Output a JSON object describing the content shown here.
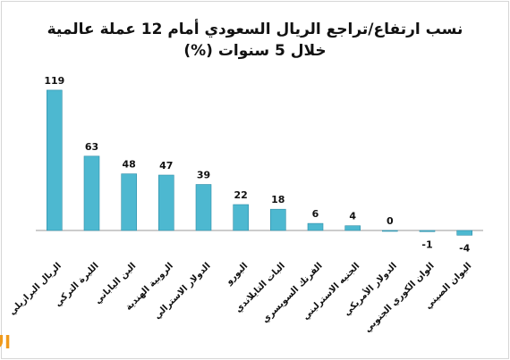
{
  "chart_data": {
    "type": "bar",
    "title_lines": [
      "نسب ارتفاع/تراجع الريال السعودي أمام 12 عملة عالمية",
      "خلال 5 سنوات (%)"
    ],
    "categories": [
      "الريال البرازيلي",
      "الليرة التركي",
      "الين الياباني",
      "الروبية الهندية",
      "الدولار الاسترالي",
      "اليورو",
      "البات التايلاندي",
      "الفرنك السويسري",
      "الجنيه الاسترليني",
      "الدولار الأمريكي",
      "الوان الكوري الجنوبي",
      "اليوان الصيني"
    ],
    "values": [
      119,
      63,
      48,
      47,
      39,
      22,
      18,
      6,
      4,
      0,
      -1,
      -4
    ],
    "ylim": [
      -8,
      130
    ],
    "grid": false,
    "legend": "none",
    "bar_color": "#4db8d0",
    "bar_edge_color": "#2f8ea8",
    "axis_color": "#9a9a9a"
  },
  "brand": {
    "logo_text": "الاقتصادية",
    "logo_color": "#f09a1c"
  }
}
